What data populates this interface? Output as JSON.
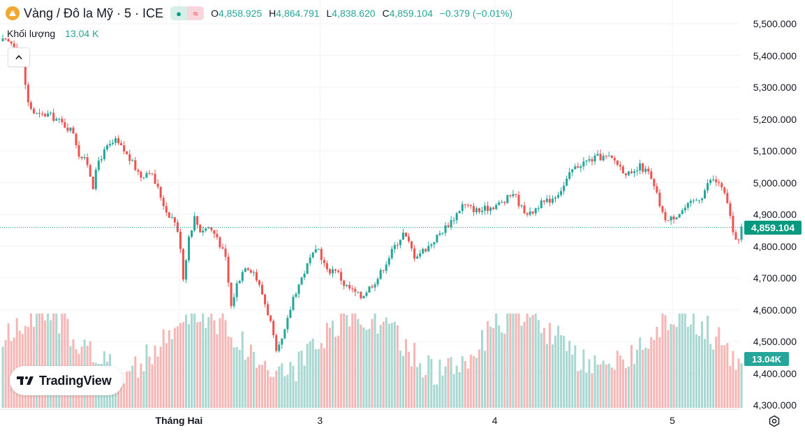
{
  "header": {
    "symbol": "Vàng / Đô la Mỹ · 5 · ICE",
    "mode_a": "●",
    "mode_b": "≈",
    "o_label": "O",
    "o_value": "4,858.925",
    "h_label": "H",
    "h_value": "4,864.791",
    "l_label": "L",
    "l_value": "4,838.620",
    "c_label": "C",
    "c_value": "4,859.104",
    "change": "−0.379 (−0.01%)"
  },
  "volume": {
    "label": "Khối lượng",
    "value": "13.04 K"
  },
  "brand": "TradingView",
  "colors": {
    "up": "#26a69a",
    "down": "#ef5350",
    "up_vol": "#a8d8d1",
    "down_vol": "#f5b7b5",
    "accent": "#089981"
  },
  "chart_data": {
    "type": "candlestick",
    "title": "Vàng / Đô la Mỹ · 5 · ICE",
    "x_labels": [
      "Tháng Hai",
      "3",
      "4",
      "5"
    ],
    "y_ticks": [
      "5,500.000",
      "5,400.000",
      "5,300.000",
      "5,200.000",
      "5,100.000",
      "5,000.000",
      "4,900.000",
      "4,800.000",
      "4,700.000",
      "4,600.000",
      "4,500.000",
      "4,400.000",
      "4,300.000"
    ],
    "ylim": [
      4300,
      5500
    ],
    "last_price": 4859.104,
    "last_price_label": "4,859.104",
    "last_volume_label": "13.04K",
    "path_points": [
      [
        0,
        5445
      ],
      [
        3,
        5440
      ],
      [
        5,
        5430
      ],
      [
        7,
        5370
      ],
      [
        9,
        5250
      ],
      [
        11,
        5220
      ],
      [
        13,
        5210
      ],
      [
        16,
        5215
      ],
      [
        19,
        5200
      ],
      [
        22,
        5180
      ],
      [
        25,
        5160
      ],
      [
        27,
        5090
      ],
      [
        30,
        5060
      ],
      [
        32,
        4990
      ],
      [
        34,
        5070
      ],
      [
        37,
        5110
      ],
      [
        40,
        5130
      ],
      [
        43,
        5100
      ],
      [
        46,
        5060
      ],
      [
        49,
        5020
      ],
      [
        52,
        5040
      ],
      [
        55,
        4980
      ],
      [
        58,
        4910
      ],
      [
        61,
        4880
      ],
      [
        63,
        4800
      ],
      [
        64,
        4700
      ],
      [
        66,
        4830
      ],
      [
        68,
        4890
      ],
      [
        70,
        4850
      ],
      [
        73,
        4860
      ],
      [
        76,
        4830
      ],
      [
        79,
        4760
      ],
      [
        81,
        4610
      ],
      [
        83,
        4680
      ],
      [
        86,
        4740
      ],
      [
        89,
        4720
      ],
      [
        92,
        4650
      ],
      [
        95,
        4560
      ],
      [
        97,
        4460
      ],
      [
        98,
        4480
      ],
      [
        100,
        4530
      ],
      [
        103,
        4640
      ],
      [
        106,
        4700
      ],
      [
        109,
        4760
      ],
      [
        112,
        4790
      ],
      [
        115,
        4720
      ],
      [
        118,
        4730
      ],
      [
        121,
        4680
      ],
      [
        124,
        4660
      ],
      [
        127,
        4640
      ],
      [
        130,
        4670
      ],
      [
        133,
        4700
      ],
      [
        136,
        4750
      ],
      [
        139,
        4800
      ],
      [
        142,
        4840
      ],
      [
        144,
        4810
      ],
      [
        146,
        4770
      ],
      [
        148,
        4780
      ],
      [
        151,
        4800
      ],
      [
        154,
        4830
      ],
      [
        157,
        4860
      ],
      [
        160,
        4890
      ],
      [
        163,
        4930
      ],
      [
        166,
        4920
      ],
      [
        169,
        4910
      ],
      [
        172,
        4920
      ],
      [
        175,
        4930
      ],
      [
        178,
        4940
      ],
      [
        181,
        4970
      ],
      [
        184,
        4920
      ],
      [
        187,
        4900
      ],
      [
        190,
        4930
      ],
      [
        193,
        4940
      ],
      [
        196,
        4960
      ],
      [
        199,
        4990
      ],
      [
        202,
        5040
      ],
      [
        205,
        5060
      ],
      [
        208,
        5070
      ],
      [
        211,
        5080
      ],
      [
        214,
        5080
      ],
      [
        217,
        5070
      ],
      [
        220,
        5040
      ],
      [
        223,
        5020
      ],
      [
        226,
        5050
      ],
      [
        229,
        5030
      ],
      [
        232,
        4960
      ],
      [
        234,
        4900
      ],
      [
        236,
        4880
      ],
      [
        239,
        4900
      ],
      [
        242,
        4920
      ],
      [
        245,
        4940
      ],
      [
        248,
        4960
      ],
      [
        251,
        5010
      ],
      [
        254,
        5000
      ],
      [
        256,
        4960
      ],
      [
        258,
        4900
      ],
      [
        259,
        4840
      ],
      [
        260,
        4810
      ],
      [
        261,
        4830
      ],
      [
        262,
        4860
      ]
    ]
  }
}
